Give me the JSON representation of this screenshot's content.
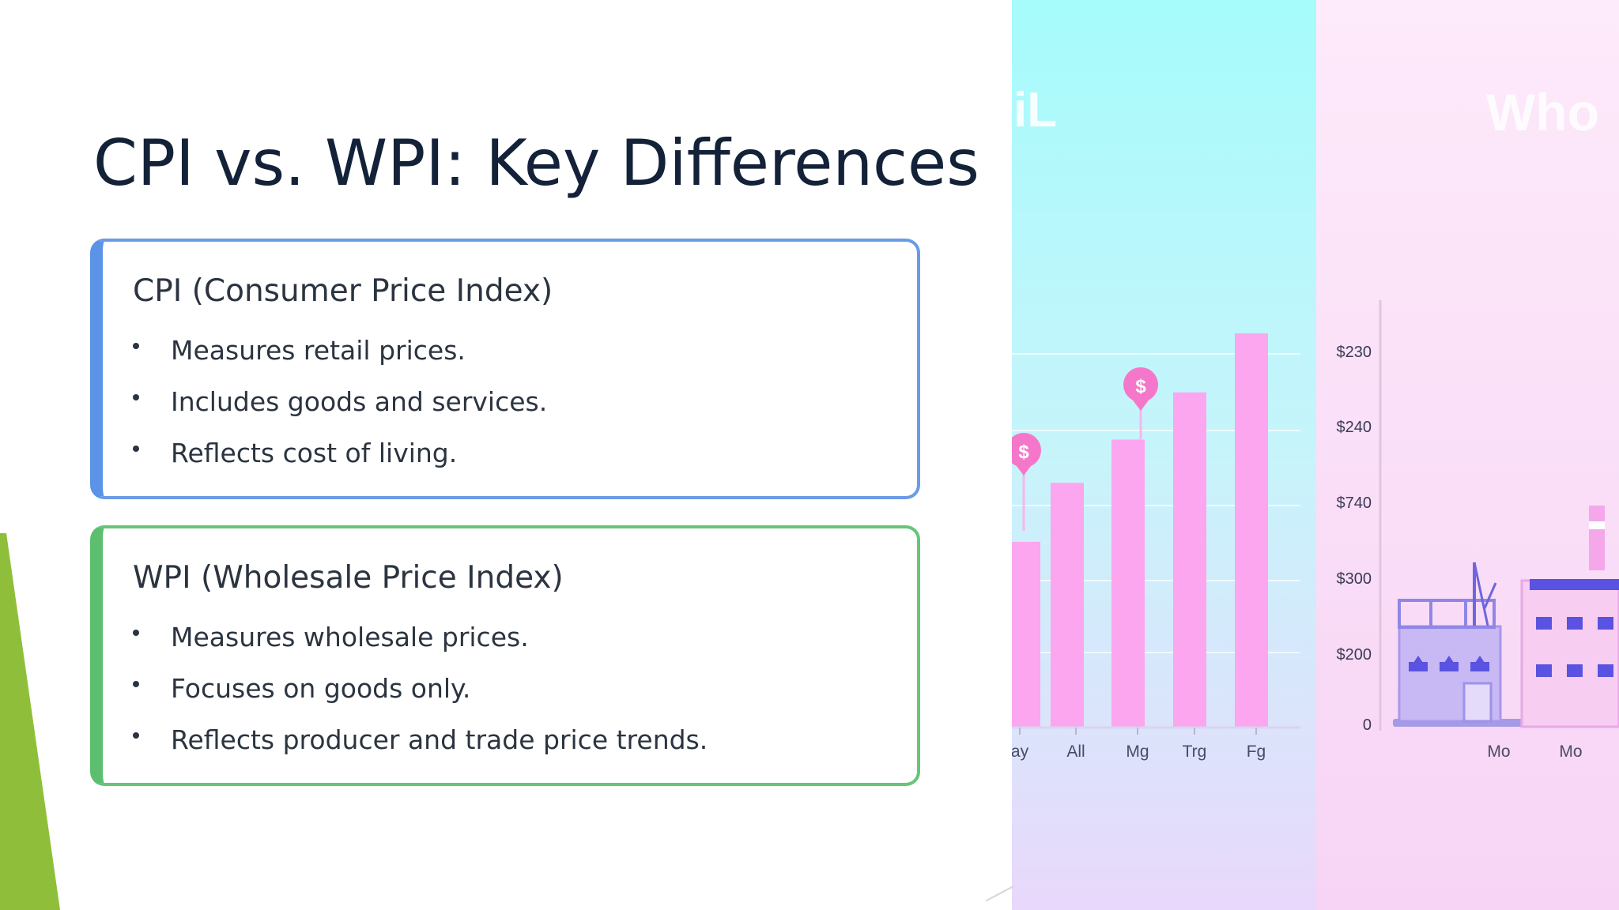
{
  "slide": {
    "title": "CPI vs. WPI: Key Differences",
    "cards": [
      {
        "heading": "CPI (Consumer Price Index)",
        "bullets": [
          "Measures retail prices.",
          "Includes goods and services.",
          "Reflects cost of living."
        ],
        "accent": "#5b94e6"
      },
      {
        "heading": "WPI (Wholesale Price Index)",
        "bullets": [
          "Measures wholesale prices.",
          "Focuses on goods only.",
          "Reflects producer and trade price trends."
        ],
        "accent": "#5cbf6f"
      }
    ]
  },
  "illustration": {
    "retail_label": "iL",
    "wholesale_label": "Who",
    "retail_x_labels": [
      "ay",
      "All",
      "Mg",
      "Trg",
      "Fg"
    ],
    "retail_bar_heights": [
      0.47,
      0.62,
      0.73,
      0.85,
      1.0
    ],
    "price_pins": [
      "$",
      "$"
    ],
    "wholesale_y_labels": [
      "$230",
      "$240",
      "$740",
      "$300",
      "$200",
      "0"
    ],
    "wholesale_x_labels": [
      "Mo",
      "Mo"
    ],
    "colors": {
      "retail_bg": "#a6fbfb",
      "wholesale_bg": "#fbe2f6",
      "bar": "#fba6ef",
      "factory_accent": "#5a52e0"
    }
  }
}
